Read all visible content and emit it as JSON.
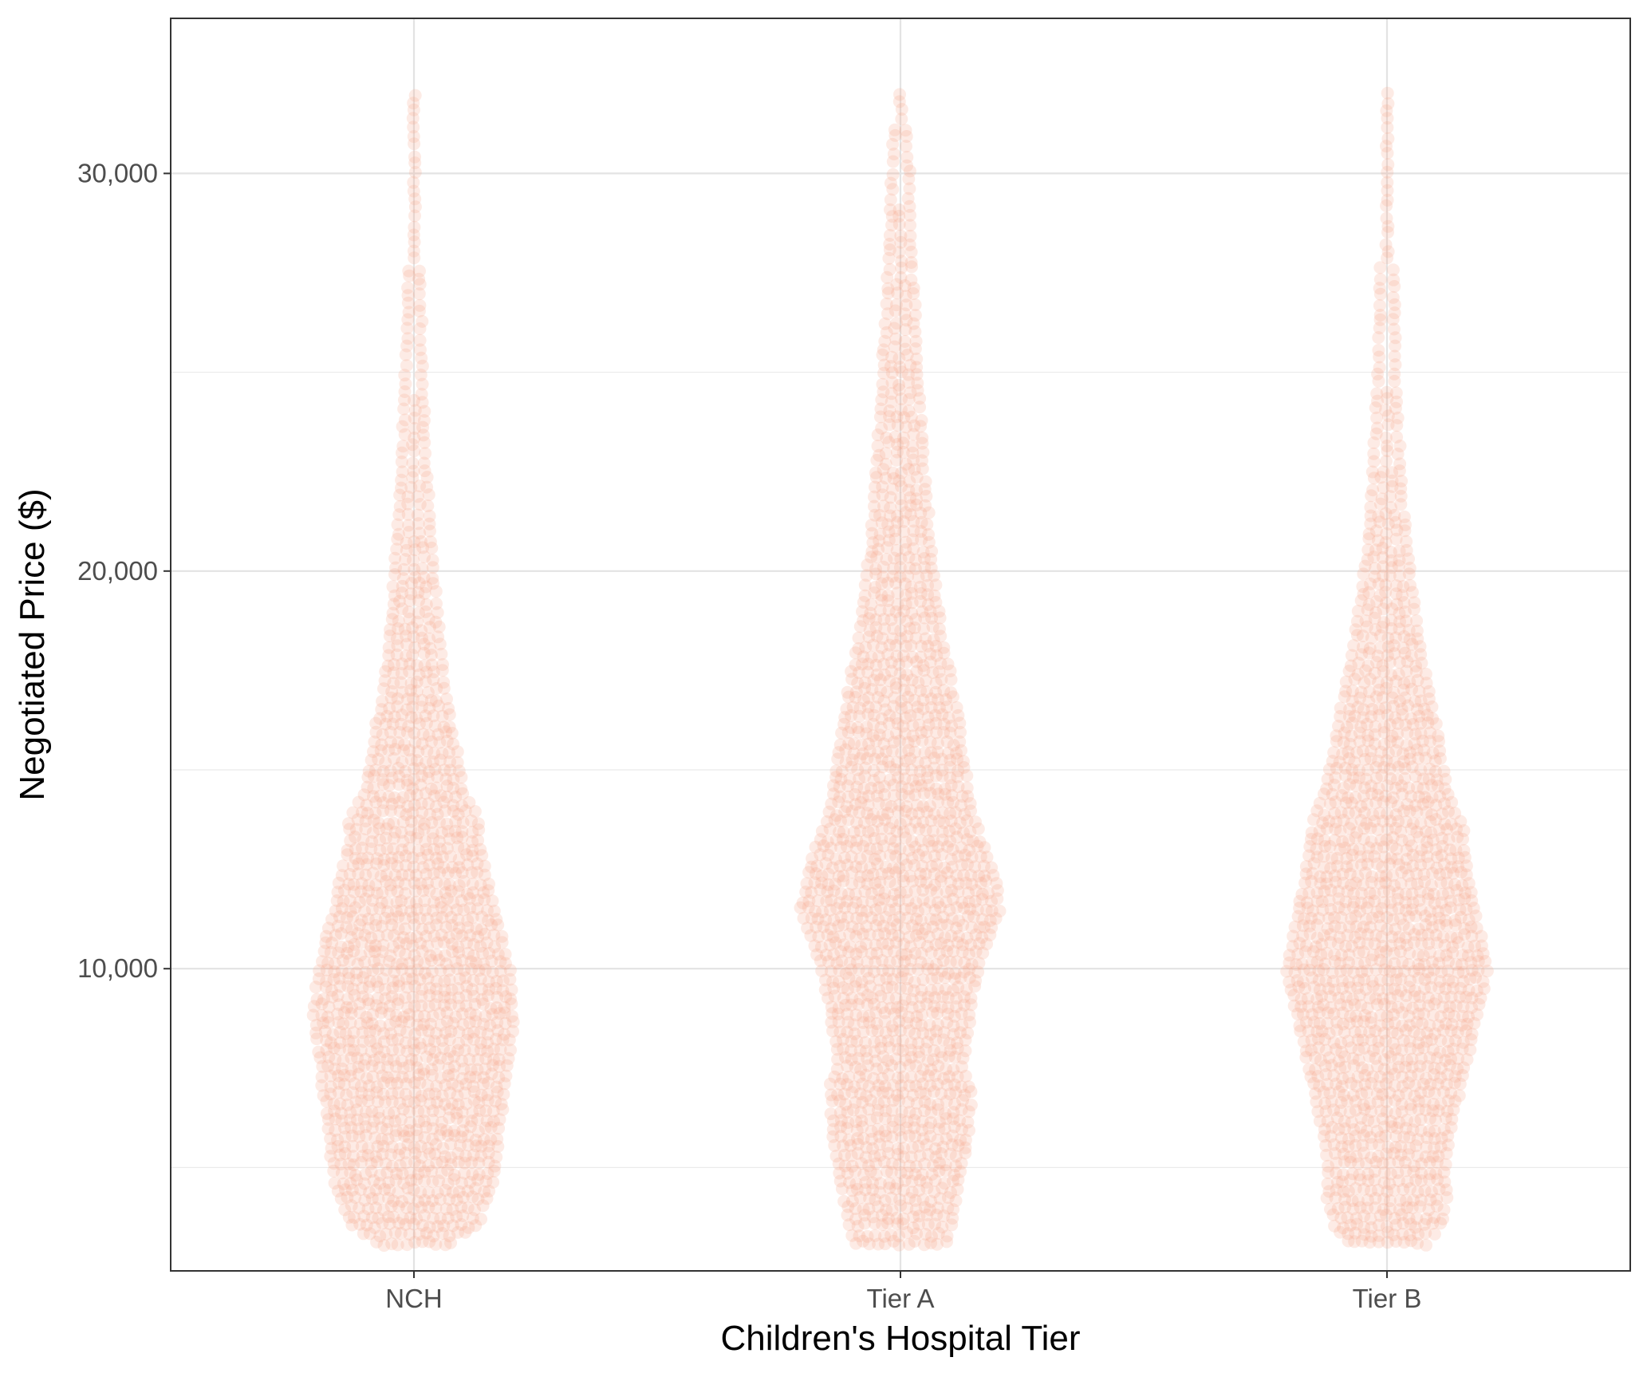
{
  "chart_data": {
    "type": "beeswarm",
    "xlabel": "Children's Hospital Tier",
    "ylabel": "Negotiated Price ($)",
    "categories": [
      "NCH",
      "Tier A",
      "Tier B"
    ],
    "y_ticks": [
      10000,
      20000,
      30000
    ],
    "y_tick_labels": [
      "10,000",
      "20,000",
      "30,000"
    ],
    "y_minor_ticks": [
      5000,
      15000,
      25000
    ],
    "ylim": [
      2400,
      33900
    ],
    "grid": true,
    "point_color": "#f4a68a",
    "point_opacity": 0.22,
    "series": [
      {
        "category": "NCH",
        "y_min": 3100,
        "y_max": 32200,
        "density_profile": [
          [
            3100,
            0.38
          ],
          [
            3500,
            0.62
          ],
          [
            4500,
            0.78
          ],
          [
            6000,
            0.86
          ],
          [
            7500,
            0.93
          ],
          [
            8800,
            1.0
          ],
          [
            10000,
            0.95
          ],
          [
            11500,
            0.8
          ],
          [
            13000,
            0.66
          ],
          [
            13800,
            0.64
          ],
          [
            14300,
            0.5
          ],
          [
            15500,
            0.42
          ],
          [
            17000,
            0.3
          ],
          [
            18500,
            0.24
          ],
          [
            20500,
            0.17
          ],
          [
            22500,
            0.12
          ],
          [
            25000,
            0.08
          ],
          [
            28000,
            0.05
          ],
          [
            30000,
            0.04
          ],
          [
            32200,
            0.03
          ]
        ]
      },
      {
        "category": "Tier A",
        "y_min": 3100,
        "y_max": 32200,
        "density_profile": [
          [
            3100,
            0.45
          ],
          [
            3500,
            0.5
          ],
          [
            4500,
            0.58
          ],
          [
            5500,
            0.66
          ],
          [
            7000,
            0.71
          ],
          [
            7500,
            0.62
          ],
          [
            9000,
            0.7
          ],
          [
            10000,
            0.78
          ],
          [
            11000,
            0.92
          ],
          [
            11500,
            1.0
          ],
          [
            12500,
            0.92
          ],
          [
            14000,
            0.7
          ],
          [
            15500,
            0.62
          ],
          [
            17000,
            0.52
          ],
          [
            18500,
            0.4
          ],
          [
            20500,
            0.3
          ],
          [
            23000,
            0.22
          ],
          [
            26000,
            0.15
          ],
          [
            28500,
            0.1
          ],
          [
            30000,
            0.08
          ],
          [
            31500,
            0.05
          ],
          [
            32200,
            0.04
          ]
        ]
      },
      {
        "category": "Tier B",
        "y_min": 3100,
        "y_max": 32200,
        "density_profile": [
          [
            3100,
            0.4
          ],
          [
            3500,
            0.52
          ],
          [
            4300,
            0.6
          ],
          [
            5000,
            0.58
          ],
          [
            6000,
            0.64
          ],
          [
            7500,
            0.78
          ],
          [
            9000,
            0.92
          ],
          [
            10000,
            1.0
          ],
          [
            11000,
            0.92
          ],
          [
            12500,
            0.8
          ],
          [
            13500,
            0.76
          ],
          [
            14500,
            0.6
          ],
          [
            16000,
            0.5
          ],
          [
            16800,
            0.43
          ],
          [
            18000,
            0.33
          ],
          [
            20000,
            0.22
          ],
          [
            22000,
            0.14
          ],
          [
            24000,
            0.1
          ],
          [
            26000,
            0.07
          ],
          [
            28000,
            0.05
          ],
          [
            30000,
            0.04
          ],
          [
            32200,
            0.02
          ]
        ]
      }
    ]
  }
}
